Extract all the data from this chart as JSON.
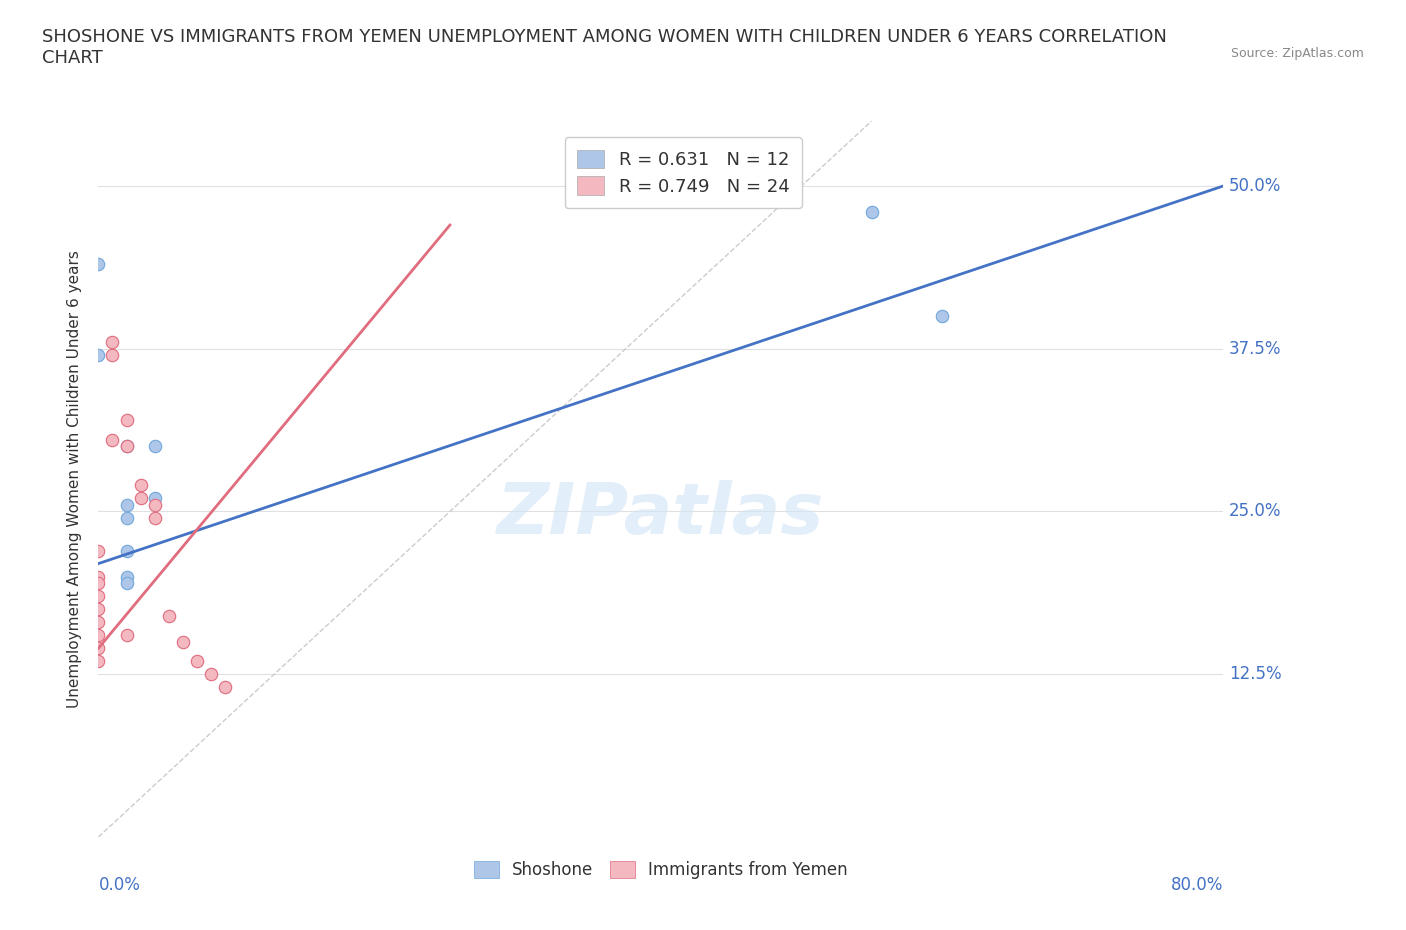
{
  "title": "SHOSHONE VS IMMIGRANTS FROM YEMEN UNEMPLOYMENT AMONG WOMEN WITH CHILDREN UNDER 6 YEARS CORRELATION\nCHART",
  "source": "Source: ZipAtlas.com",
  "ylabel": "Unemployment Among Women with Children Under 6 years",
  "ytick_values": [
    0,
    0.125,
    0.25,
    0.375,
    0.5
  ],
  "ytick_labels": [
    "",
    "12.5%",
    "25.0%",
    "37.5%",
    "50.0%"
  ],
  "xlim": [
    0,
    0.8
  ],
  "ylim": [
    0,
    0.55
  ],
  "watermark": "ZIPatlas",
  "legend_entries": [
    {
      "label": "R = 0.631   N = 12",
      "color": "#aec6e8"
    },
    {
      "label": "R = 0.749   N = 24",
      "color": "#f4b8c1"
    }
  ],
  "shoshone_scatter": {
    "color": "#aec6e8",
    "edgecolor": "#6fa8dc",
    "points": [
      [
        0.0,
        0.44
      ],
      [
        0.0,
        0.37
      ],
      [
        0.02,
        0.3
      ],
      [
        0.02,
        0.255
      ],
      [
        0.02,
        0.245
      ],
      [
        0.02,
        0.22
      ],
      [
        0.02,
        0.2
      ],
      [
        0.02,
        0.195
      ],
      [
        0.04,
        0.3
      ],
      [
        0.04,
        0.26
      ],
      [
        0.55,
        0.48
      ],
      [
        0.6,
        0.4
      ]
    ]
  },
  "shoshone_trend": {
    "color": "#4472c4",
    "x": [
      0.0,
      0.8
    ],
    "y": [
      0.21,
      0.5
    ]
  },
  "yemen_scatter": {
    "color": "#f4b8c1",
    "edgecolor": "#e06c7e",
    "points": [
      [
        0.0,
        0.22
      ],
      [
        0.0,
        0.2
      ],
      [
        0.0,
        0.195
      ],
      [
        0.0,
        0.185
      ],
      [
        0.0,
        0.175
      ],
      [
        0.0,
        0.165
      ],
      [
        0.0,
        0.155
      ],
      [
        0.0,
        0.145
      ],
      [
        0.0,
        0.135
      ],
      [
        0.01,
        0.38
      ],
      [
        0.01,
        0.37
      ],
      [
        0.01,
        0.305
      ],
      [
        0.02,
        0.32
      ],
      [
        0.02,
        0.3
      ],
      [
        0.02,
        0.155
      ],
      [
        0.03,
        0.27
      ],
      [
        0.03,
        0.26
      ],
      [
        0.04,
        0.255
      ],
      [
        0.04,
        0.245
      ],
      [
        0.05,
        0.17
      ],
      [
        0.06,
        0.15
      ],
      [
        0.07,
        0.135
      ],
      [
        0.08,
        0.125
      ],
      [
        0.09,
        0.115
      ]
    ]
  },
  "yemen_trend": {
    "color": "#e06c7e",
    "x": [
      0.0,
      0.25
    ],
    "y": [
      0.145,
      0.47
    ]
  },
  "grid_color": "#e0e0e0",
  "background_color": "#ffffff"
}
